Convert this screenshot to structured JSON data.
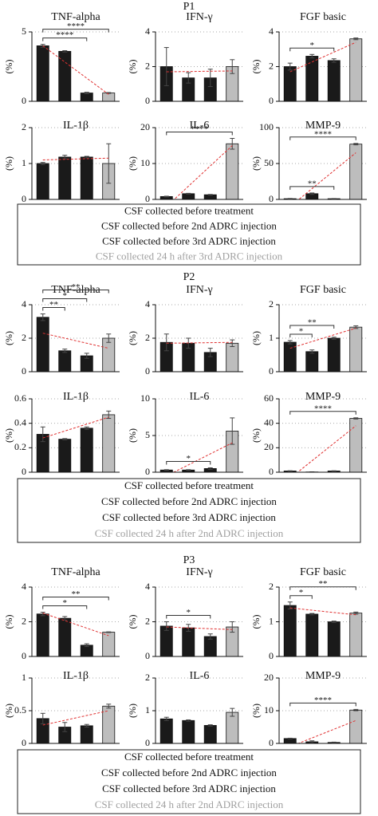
{
  "panels": [
    {
      "title": "P1",
      "legend": [
        {
          "label": "CSF collected before treatment",
          "color": "#111111"
        },
        {
          "label": "CSF collected before 2nd ADRC injection",
          "color": "#111111"
        },
        {
          "label": "CSF collected before 3rd ADRC injection",
          "color": "#111111"
        },
        {
          "label": "CSF collected 24 h after 3rd ADRC injection",
          "color": "#a0a0a0"
        }
      ]
    },
    {
      "title": "P2",
      "legend": [
        {
          "label": "CSF collected before treatment",
          "color": "#111111"
        },
        {
          "label": "CSF collected before 2nd ADRC injection",
          "color": "#111111"
        },
        {
          "label": "CSF collected before 3rd ADRC injection",
          "color": "#111111"
        },
        {
          "label": "CSF collected 24 h after 2nd ADRC injection",
          "color": "#a0a0a0"
        }
      ]
    },
    {
      "title": "P3",
      "legend": [
        {
          "label": "CSF collected before treatment",
          "color": "#111111"
        },
        {
          "label": "CSF collected before 2nd ADRC injection",
          "color": "#111111"
        },
        {
          "label": "CSF collected before 3rd ADRC injection",
          "color": "#111111"
        },
        {
          "label": "CSF collected 24 h after 2nd ADRC injection",
          "color": "#a0a0a0"
        }
      ]
    }
  ],
  "chart_data": [
    {
      "type": "bar",
      "title": "TNF-alpha",
      "y_label": "(%)",
      "values": [
        4.0,
        3.6,
        0.6,
        0.6
      ],
      "errors": [
        0.1,
        0.05,
        0.05,
        0.03
      ],
      "colors": [
        "#1a1a1a",
        "#1a1a1a",
        "#1a1a1a",
        "#bdbdbd"
      ],
      "ylim": [
        0,
        5
      ],
      "yticks": [
        0,
        5
      ],
      "grid": true,
      "trend": [
        4.0,
        0.5
      ],
      "annotations": [
        {
          "label": "****",
          "bars": [
            0,
            2
          ]
        },
        {
          "label": "****",
          "bars": [
            0,
            3
          ]
        }
      ]
    },
    {
      "type": "bar",
      "title": "IFN-γ",
      "y_label": "(%)",
      "values": [
        2.0,
        1.35,
        1.35,
        2.0
      ],
      "errors": [
        1.1,
        0.3,
        0.5,
        0.4
      ],
      "colors": [
        "#1a1a1a",
        "#1a1a1a",
        "#1a1a1a",
        "#bdbdbd"
      ],
      "ylim": [
        0,
        4
      ],
      "yticks": [
        0,
        2,
        4
      ],
      "grid": true,
      "trend": [
        1.7,
        1.75
      ],
      "annotations": []
    },
    {
      "type": "bar",
      "title": "FGF basic",
      "y_label": "(%)",
      "values": [
        2.0,
        2.6,
        2.35,
        3.6
      ],
      "errors": [
        0.2,
        0.1,
        0.1,
        0.05
      ],
      "colors": [
        "#1a1a1a",
        "#1a1a1a",
        "#1a1a1a",
        "#bdbdbd"
      ],
      "ylim": [
        0,
        4
      ],
      "yticks": [
        0,
        2,
        4
      ],
      "grid": true,
      "trend": [
        1.7,
        3.4
      ],
      "annotations": [
        {
          "label": "*",
          "bars": [
            0,
            2
          ]
        }
      ]
    },
    {
      "type": "bar",
      "title": "IL-1β",
      "y_label": "(%)",
      "values": [
        1.0,
        1.18,
        1.18,
        1.0
      ],
      "errors": [
        0.03,
        0.05,
        0.02,
        0.55
      ],
      "colors": [
        "#1a1a1a",
        "#1a1a1a",
        "#1a1a1a",
        "#bdbdbd"
      ],
      "ylim": [
        0,
        2
      ],
      "yticks": [
        0,
        1,
        2
      ],
      "grid": true,
      "trend": [
        1.1,
        1.15
      ],
      "annotations": []
    },
    {
      "type": "bar",
      "title": "IL-6",
      "y_label": "(%)",
      "values": [
        0.8,
        1.6,
        1.3,
        15.5
      ],
      "errors": [
        0.1,
        0.1,
        0.1,
        1.5
      ],
      "colors": [
        "#1a1a1a",
        "#1a1a1a",
        "#1a1a1a",
        "#bdbdbd"
      ],
      "ylim": [
        0,
        20
      ],
      "yticks": [
        0,
        10,
        20
      ],
      "grid": true,
      "trend": [
        -2,
        15
      ],
      "annotations": [
        {
          "label": "****",
          "bars": [
            0,
            3
          ]
        }
      ]
    },
    {
      "type": "bar",
      "title": "MMP-9",
      "y_label": "(%)",
      "values": [
        1,
        8,
        1,
        77
      ],
      "errors": [
        0.3,
        1,
        0.2,
        1
      ],
      "colors": [
        "#1a1a1a",
        "#1a1a1a",
        "#1a1a1a",
        "#bdbdbd"
      ],
      "ylim": [
        0,
        100
      ],
      "yticks": [
        0,
        50,
        100
      ],
      "grid": true,
      "trend": [
        -10,
        65
      ],
      "annotations": [
        {
          "label": "**",
          "bars": [
            0,
            2
          ]
        },
        {
          "label": "****",
          "bars": [
            0,
            3
          ]
        }
      ]
    },
    {
      "type": "bar",
      "title": "TNF-alpha",
      "y_label": "(%)",
      "values": [
        3.25,
        1.25,
        0.95,
        2.0
      ],
      "errors": [
        0.2,
        0.1,
        0.15,
        0.25
      ],
      "colors": [
        "#1a1a1a",
        "#1a1a1a",
        "#1a1a1a",
        "#bdbdbd"
      ],
      "ylim": [
        0,
        4
      ],
      "yticks": [
        0,
        2,
        4
      ],
      "grid": true,
      "trend": [
        2.3,
        1.4
      ],
      "annotations": [
        {
          "label": "**",
          "bars": [
            0,
            1
          ]
        },
        {
          "label": "*",
          "bars": [
            0,
            2
          ]
        },
        {
          "label": "**",
          "bars": [
            0,
            3
          ]
        }
      ]
    },
    {
      "type": "bar",
      "title": "IFN-γ",
      "y_label": "(%)",
      "values": [
        1.75,
        1.7,
        1.15,
        1.7
      ],
      "errors": [
        0.5,
        0.3,
        0.25,
        0.2
      ],
      "colors": [
        "#1a1a1a",
        "#1a1a1a",
        "#1a1a1a",
        "#bdbdbd"
      ],
      "ylim": [
        0,
        4
      ],
      "yticks": [
        0,
        2,
        4
      ],
      "grid": true,
      "trend": [
        1.7,
        1.75
      ],
      "annotations": []
    },
    {
      "type": "bar",
      "title": "FGF basic",
      "y_label": "(%)",
      "values": [
        0.88,
        0.6,
        1.0,
        1.33
      ],
      "errors": [
        0.05,
        0.05,
        0.03,
        0.04
      ],
      "colors": [
        "#1a1a1a",
        "#1a1a1a",
        "#1a1a1a",
        "#bdbdbd"
      ],
      "ylim": [
        0,
        2
      ],
      "yticks": [
        0,
        1,
        2
      ],
      "grid": true,
      "trend": [
        0.7,
        1.3
      ],
      "annotations": [
        {
          "label": "*",
          "bars": [
            0,
            1
          ]
        },
        {
          "label": "**",
          "bars": [
            0,
            2
          ]
        }
      ]
    },
    {
      "type": "bar",
      "title": "IL-1β",
      "y_label": "(%)",
      "values": [
        0.31,
        0.27,
        0.36,
        0.47
      ],
      "errors": [
        0.06,
        0.005,
        0.01,
        0.03
      ],
      "colors": [
        "#1a1a1a",
        "#1a1a1a",
        "#1a1a1a",
        "#bdbdbd"
      ],
      "ylim": [
        0,
        0.6
      ],
      "yticks": [
        0,
        0.2,
        0.4,
        0.6
      ],
      "grid": true,
      "trend": [
        0.28,
        0.45
      ],
      "annotations": []
    },
    {
      "type": "bar",
      "title": "IL-6",
      "y_label": "(%)",
      "values": [
        0.3,
        0.3,
        0.5,
        5.6
      ],
      "errors": [
        0.05,
        0.05,
        0.1,
        1.8
      ],
      "colors": [
        "#1a1a1a",
        "#1a1a1a",
        "#1a1a1a",
        "#bdbdbd"
      ],
      "ylim": [
        0,
        10
      ],
      "yticks": [
        0,
        5,
        10
      ],
      "grid": true,
      "trend": [
        -0.5,
        4
      ],
      "annotations": [
        {
          "label": "*",
          "bars": [
            0,
            2
          ]
        }
      ]
    },
    {
      "type": "bar",
      "title": "MMP-9",
      "y_label": "(%)",
      "values": [
        1,
        0.2,
        1,
        44
      ],
      "errors": [
        0.2,
        0.1,
        0.2,
        0.5
      ],
      "colors": [
        "#1a1a1a",
        "#1a1a1a",
        "#1a1a1a",
        "#bdbdbd"
      ],
      "ylim": [
        0,
        60
      ],
      "yticks": [
        0,
        20,
        40,
        60
      ],
      "grid": true,
      "trend": [
        -5,
        38
      ],
      "annotations": [
        {
          "label": "****",
          "bars": [
            0,
            3
          ]
        }
      ]
    },
    {
      "type": "bar",
      "title": "TNF-alpha",
      "y_label": "(%)",
      "values": [
        2.45,
        2.2,
        0.65,
        1.4
      ],
      "errors": [
        0.1,
        0.1,
        0.08,
        0.02
      ],
      "colors": [
        "#1a1a1a",
        "#1a1a1a",
        "#1a1a1a",
        "#bdbdbd"
      ],
      "ylim": [
        0,
        4
      ],
      "yticks": [
        0,
        2,
        4
      ],
      "grid": true,
      "trend": [
        2.5,
        1.2
      ],
      "annotations": [
        {
          "label": "*",
          "bars": [
            0,
            2
          ]
        },
        {
          "label": "**",
          "bars": [
            0,
            3
          ]
        }
      ]
    },
    {
      "type": "bar",
      "title": "IFN-γ",
      "y_label": "(%)",
      "values": [
        1.75,
        1.65,
        1.15,
        1.7
      ],
      "errors": [
        0.25,
        0.2,
        0.15,
        0.3
      ],
      "colors": [
        "#1a1a1a",
        "#1a1a1a",
        "#1a1a1a",
        "#bdbdbd"
      ],
      "ylim": [
        0,
        4
      ],
      "yticks": [
        0,
        2,
        4
      ],
      "grid": true,
      "trend": [
        1.7,
        1.55
      ],
      "annotations": [
        {
          "label": "*",
          "bars": [
            0,
            2
          ]
        }
      ]
    },
    {
      "type": "bar",
      "title": "FGF basic",
      "y_label": "(%)",
      "values": [
        1.47,
        1.22,
        1.0,
        1.25
      ],
      "errors": [
        0.1,
        0.02,
        0.02,
        0.03
      ],
      "colors": [
        "#1a1a1a",
        "#1a1a1a",
        "#1a1a1a",
        "#bdbdbd"
      ],
      "ylim": [
        0,
        2
      ],
      "yticks": [
        0,
        1,
        2
      ],
      "grid": true,
      "trend": [
        1.4,
        1.2
      ],
      "annotations": [
        {
          "label": "*",
          "bars": [
            0,
            1
          ]
        },
        {
          "label": "**",
          "bars": [
            0,
            3
          ]
        }
      ]
    },
    {
      "type": "bar",
      "title": "IL-1β",
      "y_label": "(%)",
      "values": [
        0.38,
        0.25,
        0.27,
        0.57
      ],
      "errors": [
        0.08,
        0.07,
        0.02,
        0.03
      ],
      "colors": [
        "#1a1a1a",
        "#1a1a1a",
        "#1a1a1a",
        "#bdbdbd"
      ],
      "ylim": [
        0,
        1
      ],
      "yticks": [
        0,
        0.5,
        1
      ],
      "grid": true,
      "trend": [
        0.28,
        0.5
      ],
      "annotations": []
    },
    {
      "type": "bar",
      "title": "IL-6",
      "y_label": "(%)",
      "values": [
        0.75,
        0.7,
        0.55,
        0.95
      ],
      "errors": [
        0.05,
        0.02,
        0.02,
        0.12
      ],
      "colors": [
        "#1a1a1a",
        "#1a1a1a",
        "#1a1a1a",
        "#bdbdbd"
      ],
      "ylim": [
        0,
        2
      ],
      "yticks": [
        0,
        1,
        2
      ],
      "grid": true,
      "annotations": []
    },
    {
      "type": "bar",
      "title": "MMP-9",
      "y_label": "(%)",
      "values": [
        1.5,
        0.5,
        0.3,
        10.2
      ],
      "errors": [
        0.1,
        0.3,
        0.1,
        0.2
      ],
      "colors": [
        "#1a1a1a",
        "#1a1a1a",
        "#1a1a1a",
        "#bdbdbd"
      ],
      "ylim": [
        0,
        20
      ],
      "yticks": [
        0,
        10,
        20
      ],
      "grid": true,
      "trend": [
        -1,
        7
      ],
      "annotations": [
        {
          "label": "****",
          "bars": [
            0,
            3
          ]
        }
      ]
    }
  ]
}
